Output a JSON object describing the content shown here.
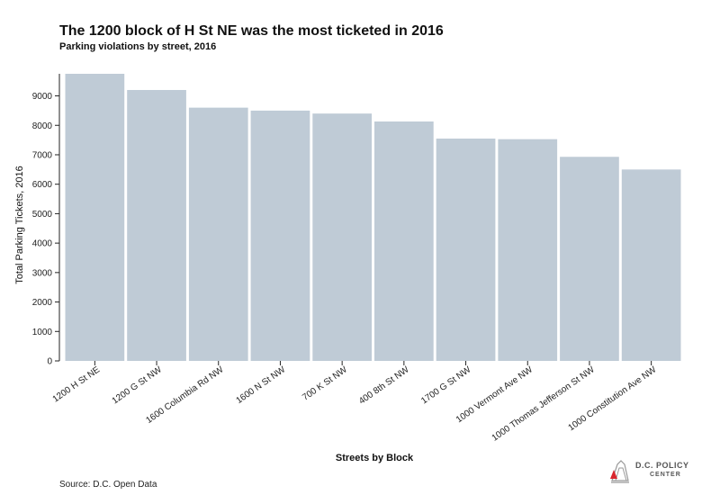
{
  "header": {
    "title": "The 1200 block of H St NE was the most ticketed in 2016",
    "subtitle": "Parking violations by street, 2016"
  },
  "footer": {
    "source": "Source: D.C. Open Data",
    "logo_line1": "D.C. POLICY",
    "logo_line2": "CENTER"
  },
  "chart_data": {
    "type": "bar",
    "title": "The 1200 block of H St NE was the most ticketed in 2016",
    "subtitle": "Parking violations by street, 2016",
    "xlabel": "Streets by Block",
    "ylabel": "Total Parking Tickets, 2016",
    "categories": [
      "1200 H St NE",
      "1200 G St NW",
      "1600 Columbia Rd NW",
      "1600 N St NW",
      "700 K St NW",
      "400 8th St NW",
      "1700 G St NW",
      "1000 Vermont Ave NW",
      "1000 Thomas Jefferson St NW",
      "1000 Constitution Ave NW"
    ],
    "values": [
      9750,
      9200,
      8600,
      8500,
      8400,
      8130,
      7550,
      7530,
      6930,
      6500
    ],
    "ylim": [
      0,
      9750
    ],
    "yticks": [
      0,
      1000,
      2000,
      3000,
      4000,
      5000,
      6000,
      7000,
      8000,
      9000
    ],
    "bar_color": "#bfcbd6",
    "grid": false
  }
}
